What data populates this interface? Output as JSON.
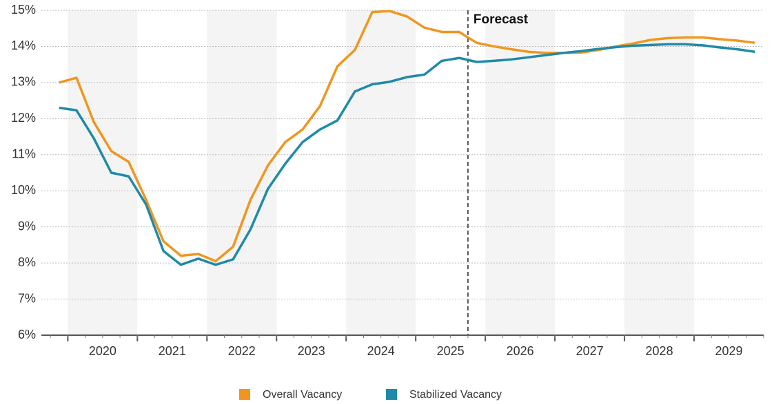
{
  "chart_data": {
    "type": "line",
    "annotation": "Forecast",
    "forecast_x": 2025.75,
    "x": [
      2019.875,
      2020.125,
      2020.375,
      2020.625,
      2020.875,
      2021.125,
      2021.375,
      2021.625,
      2021.875,
      2022.125,
      2022.375,
      2022.625,
      2022.875,
      2023.125,
      2023.375,
      2023.625,
      2023.875,
      2024.125,
      2024.375,
      2024.625,
      2024.875,
      2025.125,
      2025.375,
      2025.625,
      2025.875,
      2026.125,
      2026.375,
      2026.625,
      2026.875,
      2027.125,
      2027.375,
      2027.625,
      2027.875,
      2028.125,
      2028.375,
      2028.625,
      2028.875,
      2029.125,
      2029.375,
      2029.625,
      2029.875
    ],
    "series": [
      {
        "name": "Overall Vacancy",
        "color": "#f0961e",
        "values": [
          13.0,
          13.13,
          11.9,
          11.1,
          10.8,
          9.75,
          8.6,
          8.2,
          8.25,
          8.05,
          8.45,
          9.75,
          10.7,
          11.35,
          11.7,
          12.35,
          13.45,
          13.9,
          14.95,
          14.98,
          14.83,
          14.52,
          14.4,
          14.4,
          14.1,
          14.0,
          13.92,
          13.85,
          13.82,
          13.82,
          13.83,
          13.9,
          14.0,
          14.08,
          14.18,
          14.23,
          14.25,
          14.25,
          14.2,
          14.16,
          14.1
        ]
      },
      {
        "name": "Stabilized Vacancy",
        "color": "#1e8aa8",
        "values": [
          12.3,
          12.23,
          11.45,
          10.5,
          10.4,
          9.62,
          8.33,
          7.95,
          8.12,
          7.95,
          8.1,
          8.93,
          10.05,
          10.75,
          11.35,
          11.7,
          11.95,
          12.75,
          12.95,
          13.02,
          13.15,
          13.22,
          13.6,
          13.68,
          13.57,
          13.6,
          13.64,
          13.7,
          13.76,
          13.82,
          13.87,
          13.93,
          13.98,
          14.02,
          14.04,
          14.06,
          14.06,
          14.03,
          13.97,
          13.92,
          13.85
        ]
      }
    ],
    "xlim": [
      2019.62,
      2030.0
    ],
    "xticks": [
      {
        "value": 2020.5,
        "label": "2020"
      },
      {
        "value": 2021.5,
        "label": "2021"
      },
      {
        "value": 2022.5,
        "label": "2022"
      },
      {
        "value": 2023.5,
        "label": "2023"
      },
      {
        "value": 2024.5,
        "label": "2024"
      },
      {
        "value": 2025.5,
        "label": "2025"
      },
      {
        "value": 2026.5,
        "label": "2026"
      },
      {
        "value": 2027.5,
        "label": "2027"
      },
      {
        "value": 2028.5,
        "label": "2028"
      },
      {
        "value": 2029.5,
        "label": "2029"
      }
    ],
    "ylim": [
      6,
      15
    ],
    "yticks": [
      {
        "value": 6,
        "label": "6%"
      },
      {
        "value": 7,
        "label": "7%"
      },
      {
        "value": 8,
        "label": "8%"
      },
      {
        "value": 9,
        "label": "9%"
      },
      {
        "value": 10,
        "label": "10%"
      },
      {
        "value": 11,
        "label": "11%"
      },
      {
        "value": 12,
        "label": "12%"
      },
      {
        "value": 13,
        "label": "13%"
      },
      {
        "value": 14,
        "label": "14%"
      },
      {
        "value": 15,
        "label": "15%"
      }
    ],
    "grid": true,
    "legend": "bottom"
  }
}
